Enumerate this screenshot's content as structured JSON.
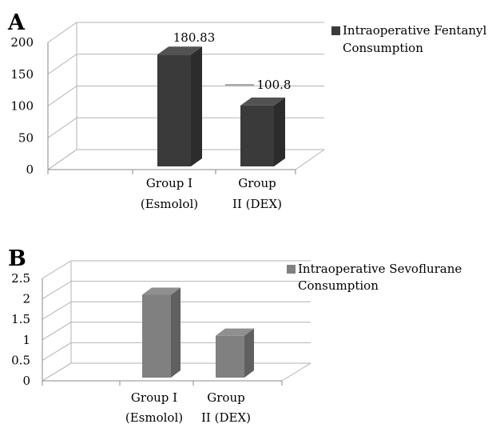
{
  "chart_data": [
    {
      "panel": "A",
      "type": "bar",
      "categories": [
        "Group I (Esmolol)",
        "Group II (DEX)"
      ],
      "category_lines": [
        [
          "Group I",
          "(Esmolol)"
        ],
        [
          "Group",
          "II (DEX)"
        ]
      ],
      "series": [
        {
          "name": "Intraoperative Fentanyl Consumption",
          "values": [
            180.83,
            100.8
          ],
          "data_labels": [
            "180.83",
            "100.8"
          ]
        }
      ],
      "legend_lines": [
        "Intraoperative Fentanyl",
        "Consumption"
      ],
      "yticks": [
        "0",
        "50",
        "100",
        "150",
        "200"
      ],
      "ylim": [
        0,
        200
      ],
      "bar_color": "#3a3a3a",
      "grid": true,
      "legend": "right"
    },
    {
      "panel": "B",
      "type": "bar",
      "categories": [
        "Group I (Esmolol)",
        "Group II (DEX)"
      ],
      "category_lines": [
        [
          "Group I",
          "(Esmolol)"
        ],
        [
          "Group",
          "II (DEX)"
        ]
      ],
      "series": [
        {
          "name": "Intraoperative Sevoflurane Consumption",
          "values": [
            2.1,
            1.1
          ]
        }
      ],
      "legend_lines": [
        "Intraoperative Sevoflurane",
        "Consumption"
      ],
      "yticks": [
        "0",
        "0.5",
        "1",
        "1.5",
        "2",
        "2.5"
      ],
      "ylim": [
        0,
        2.5
      ],
      "bar_color": "#808080",
      "grid": true,
      "legend": "right"
    }
  ]
}
